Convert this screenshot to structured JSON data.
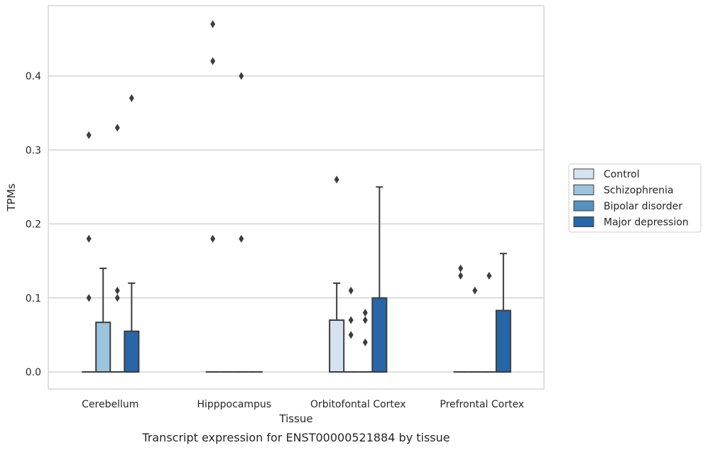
{
  "chart_data": {
    "type": "box",
    "title": "",
    "caption": "Transcript expression for ENST00000521884 by tissue",
    "xlabel": "Tissue",
    "ylabel": "TPMs",
    "ylim": [
      -0.023,
      0.495
    ],
    "yticks": [
      "0.0",
      "0.1",
      "0.2",
      "0.3",
      "0.4"
    ],
    "grid": "horizontal",
    "legend_position": "right",
    "categories": [
      "Cerebellum",
      "Hipppocampus",
      "Orbitofontal Cortex",
      "Prefrontal Cortex"
    ],
    "series": [
      {
        "name": "Control",
        "color": "#d5e3f1",
        "boxes": [
          {
            "q1": 0,
            "median": 0,
            "q3": 0,
            "whisker_low": 0,
            "whisker_high": 0,
            "outliers": [
              0.1,
              0.18,
              0.32
            ]
          },
          {
            "q1": 0,
            "median": 0,
            "q3": 0,
            "whisker_low": 0,
            "whisker_high": 0,
            "outliers": [
              0.18,
              0.42,
              0.47
            ]
          },
          {
            "q1": 0,
            "median": 0,
            "q3": 0.07,
            "whisker_low": 0,
            "whisker_high": 0.12,
            "outliers": [
              0.26
            ]
          },
          {
            "q1": 0,
            "median": 0,
            "q3": 0,
            "whisker_low": 0,
            "whisker_high": 0,
            "outliers": [
              0.13,
              0.14
            ]
          }
        ]
      },
      {
        "name": "Schizophrenia",
        "color": "#9cc4dd",
        "boxes": [
          {
            "q1": 0,
            "median": 0,
            "q3": 0.067,
            "whisker_low": 0,
            "whisker_high": 0.14,
            "outliers": []
          },
          {
            "q1": 0,
            "median": 0,
            "q3": 0,
            "whisker_low": 0,
            "whisker_high": 0,
            "outliers": []
          },
          {
            "q1": 0,
            "median": 0,
            "q3": 0,
            "whisker_low": 0,
            "whisker_high": 0,
            "outliers": [
              0.05,
              0.07,
              0.11
            ]
          },
          {
            "q1": 0,
            "median": 0,
            "q3": 0,
            "whisker_low": 0,
            "whisker_high": 0,
            "outliers": [
              0.11
            ]
          }
        ]
      },
      {
        "name": "Bipolar disorder",
        "color": "#5592c2",
        "boxes": [
          {
            "q1": 0,
            "median": 0,
            "q3": 0,
            "whisker_low": 0,
            "whisker_high": 0,
            "outliers": [
              0.1,
              0.11,
              0.33
            ]
          },
          {
            "q1": 0,
            "median": 0,
            "q3": 0,
            "whisker_low": 0,
            "whisker_high": 0,
            "outliers": [
              0.18,
              0.4
            ]
          },
          {
            "q1": 0,
            "median": 0,
            "q3": 0,
            "whisker_low": 0,
            "whisker_high": 0,
            "outliers": [
              0.04,
              0.07,
              0.08
            ]
          },
          {
            "q1": 0,
            "median": 0,
            "q3": 0,
            "whisker_low": 0,
            "whisker_high": 0,
            "outliers": [
              0.13
            ]
          }
        ]
      },
      {
        "name": "Major depression",
        "color": "#2766a8",
        "boxes": [
          {
            "q1": 0,
            "median": 0,
            "q3": 0.055,
            "whisker_low": 0,
            "whisker_high": 0.12,
            "outliers": [
              0.37
            ]
          },
          {
            "q1": 0,
            "median": 0,
            "q3": 0,
            "whisker_low": 0,
            "whisker_high": 0,
            "outliers": []
          },
          {
            "q1": 0,
            "median": 0,
            "q3": 0.1,
            "whisker_low": 0,
            "whisker_high": 0.25,
            "outliers": []
          },
          {
            "q1": 0,
            "median": 0,
            "q3": 0.083,
            "whisker_low": 0,
            "whisker_high": 0.16,
            "outliers": []
          }
        ]
      }
    ]
  }
}
